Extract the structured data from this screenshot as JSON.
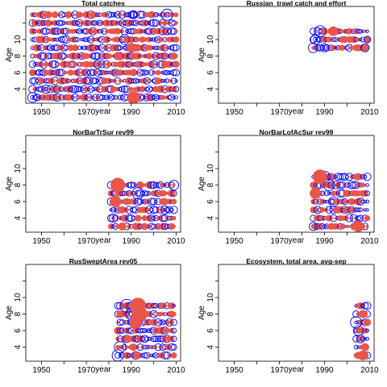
{
  "chart_data": [
    {
      "type": "scatter",
      "title": "Total catches",
      "xlabel": "year",
      "ylabel": "Age",
      "xlim": [
        1943,
        2012
      ],
      "ylim": [
        2.3,
        14
      ],
      "xticks": [
        "1950",
        "1970",
        "1990",
        "2010"
      ],
      "yticks": [
        "4",
        "6",
        "8",
        "10"
      ],
      "years": [
        1946,
        2010
      ],
      "ages": [
        3,
        13
      ],
      "series": [
        {
          "style": "blue open circles",
          "sizes": [
            [
              1946,
              3,
              6
            ],
            [
              1952,
              4,
              5
            ],
            [
              1975,
              7,
              5
            ],
            [
              1987,
              10,
              6
            ],
            [
              2006,
              13,
              7
            ],
            [
              1991,
              13,
              5
            ],
            [
              1948,
              3,
              4
            ]
          ]
        },
        {
          "style": "red filled",
          "sizes": [
            [
              1962,
              7,
              4
            ],
            [
              1984,
              8,
              5
            ],
            [
              1990,
              9,
              6
            ],
            [
              1991,
              3,
              8
            ]
          ]
        }
      ]
    },
    {
      "type": "scatter",
      "title": "Russian_trawl catch and effort",
      "xlabel": "year",
      "ylabel": "Age",
      "xlim": [
        1943,
        2012
      ],
      "ylim": [
        2.3,
        14
      ],
      "xticks": [
        "1950",
        "1970",
        "1990",
        "2010"
      ],
      "yticks": [
        "4",
        "6",
        "8",
        "10"
      ],
      "years": [
        1985,
        2009
      ],
      "ages": [
        9,
        11
      ],
      "series": [
        {
          "style": "blue open circles",
          "sizes": [
            [
              1985,
              9,
              6
            ],
            [
              1986,
              10,
              6
            ],
            [
              1988,
              11,
              7
            ],
            [
              1990,
              9,
              5
            ],
            [
              2008,
              9,
              5
            ],
            [
              2009,
              10,
              4
            ]
          ]
        },
        {
          "style": "red filled",
          "sizes": [
            [
              1994,
              11,
              6
            ],
            [
              1999,
              10,
              4
            ],
            [
              2004,
              9,
              4
            ]
          ]
        }
      ]
    },
    {
      "type": "scatter",
      "title": "NorBarTrSur rev99",
      "xlabel": "year",
      "ylabel": "Age",
      "xlim": [
        1943,
        2012
      ],
      "ylim": [
        2.3,
        14
      ],
      "xticks": [
        "1950",
        "1970",
        "1990",
        "2010"
      ],
      "yticks": [
        "4",
        "6",
        "8",
        "10"
      ],
      "years": [
        1981,
        2009
      ],
      "ages": [
        3,
        8
      ],
      "series": [
        {
          "style": "blue open circles",
          "sizes": [
            [
              1993,
              7,
              7
            ],
            [
              2009,
              8,
              6
            ],
            [
              2005,
              5,
              5
            ],
            [
              1982,
              4,
              5
            ]
          ]
        },
        {
          "style": "red filled",
          "sizes": [
            [
              1984,
              8,
              9
            ],
            [
              1983,
              6,
              7
            ],
            [
              1986,
              3,
              5
            ]
          ]
        }
      ]
    },
    {
      "type": "scatter",
      "title": "NorBarLofAcSur rev99",
      "xlabel": "year",
      "ylabel": "Age",
      "xlim": [
        1943,
        2012
      ],
      "ylim": [
        2.3,
        14
      ],
      "xticks": [
        "1950",
        "1970",
        "1990",
        "2010"
      ],
      "yticks": [
        "4",
        "6",
        "8",
        "10"
      ],
      "years": [
        1985,
        2009
      ],
      "ages": [
        3,
        9
      ],
      "series": [
        {
          "style": "blue open circles",
          "sizes": [
            [
              1990,
              9,
              7
            ],
            [
              1992,
              8,
              7
            ],
            [
              1985,
              3,
              5
            ],
            [
              1994,
              6,
              6
            ]
          ]
        },
        {
          "style": "red filled",
          "sizes": [
            [
              1988,
              9,
              9
            ],
            [
              2005,
              3,
              7
            ],
            [
              1986,
              7,
              7
            ]
          ]
        }
      ]
    },
    {
      "type": "scatter",
      "title": "RusSweptArea rev05",
      "xlabel": "year",
      "ylabel": "Age",
      "xlim": [
        1943,
        2012
      ],
      "ylim": [
        2.3,
        14
      ],
      "xticks": [
        "1950",
        "1970",
        "1990",
        "2010"
      ],
      "yticks": [
        "4",
        "6",
        "8",
        "10"
      ],
      "years": [
        1984,
        2009
      ],
      "ages": [
        3,
        9
      ],
      "series": [
        {
          "style": "blue open circles",
          "sizes": [
            [
              1984,
              3,
              7
            ],
            [
              1985,
              4,
              7
            ],
            [
              1988,
              9,
              8
            ],
            [
              1990,
              8,
              7
            ]
          ]
        },
        {
          "style": "red filled",
          "sizes": [
            [
              1993,
              9,
              10
            ],
            [
              1994,
              8,
              9
            ],
            [
              1992,
              7,
              8
            ]
          ]
        }
      ]
    },
    {
      "type": "scatter",
      "title": "Ecosystem, total area, avg-sep",
      "xlabel": "year",
      "ylabel": "Age",
      "xlim": [
        1943,
        2012
      ],
      "ylim": [
        2.3,
        14
      ],
      "xticks": [
        "1950",
        "1970",
        "1990",
        "2010"
      ],
      "yticks": [
        "4",
        "6",
        "8",
        "10"
      ],
      "years": [
        2004,
        2009
      ],
      "ages": [
        3,
        9
      ],
      "series": [
        {
          "style": "blue open circles",
          "sizes": [
            [
              2004,
              7,
              7
            ],
            [
              2005,
              6,
              6
            ],
            [
              2006,
              5,
              5
            ]
          ]
        },
        {
          "style": "red filled",
          "sizes": [
            [
              2007,
              3,
              6
            ],
            [
              2008,
              4,
              5
            ],
            [
              2007,
              8,
              5
            ]
          ]
        }
      ]
    }
  ],
  "colors": {
    "blue": "#0000ff",
    "red": "#e8564a"
  }
}
